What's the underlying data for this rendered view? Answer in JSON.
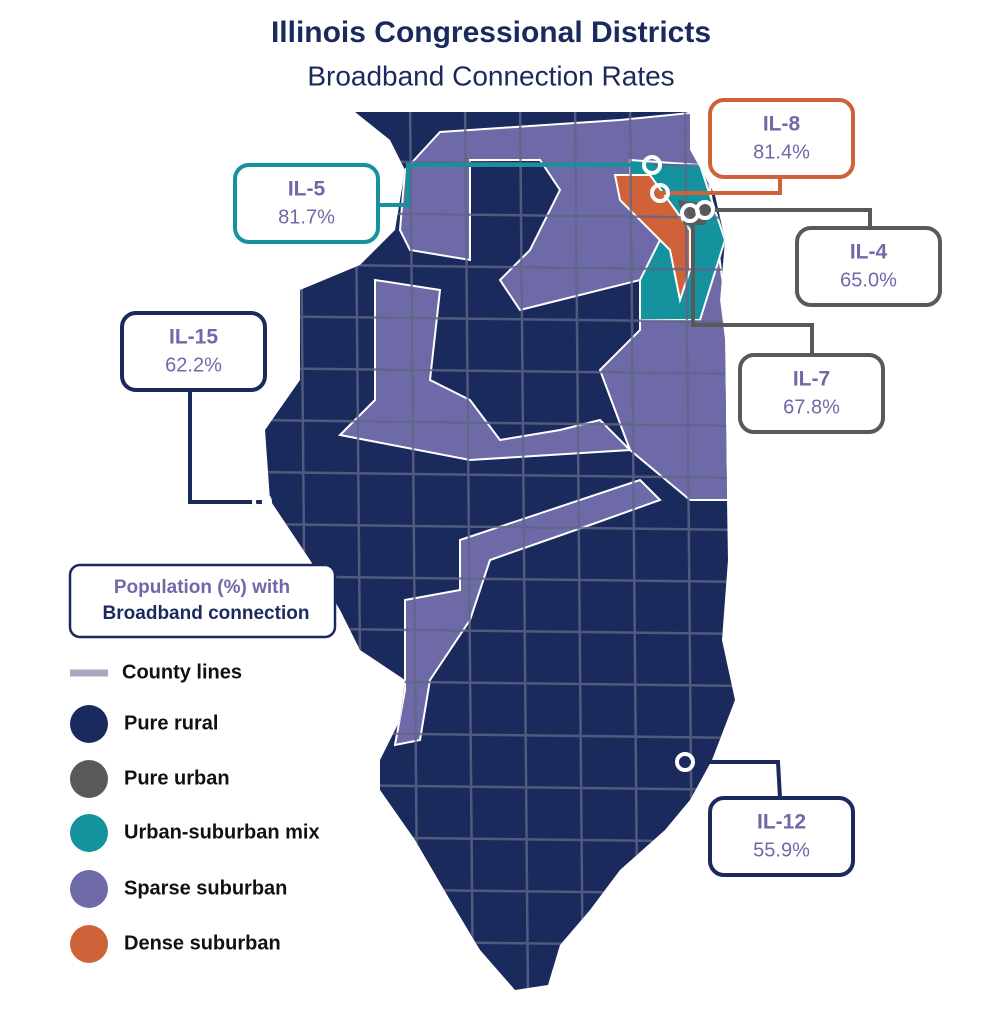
{
  "title": "Illinois Congressional Districts",
  "subtitle": "Broadband Connection Rates",
  "callouts": [
    {
      "district": "IL-8",
      "rate": "81.4%",
      "color": "#cf6238"
    },
    {
      "district": "IL-5",
      "rate": "81.7%",
      "color": "#14939f"
    },
    {
      "district": "IL-4",
      "rate": "65.0%",
      "color": "#58595b"
    },
    {
      "district": "IL-7",
      "rate": "67.8%",
      "color": "#58595b"
    },
    {
      "district": "IL-15",
      "rate": "62.2%",
      "color": "#1b2a5c"
    },
    {
      "district": "IL-12",
      "rate": "55.9%",
      "color": "#1b2a5c"
    }
  ],
  "legend": {
    "title_line1": "Population (%) with",
    "title_line2": "Broadband connection",
    "items": [
      {
        "label": "County lines",
        "color": "#a6a9bd"
      },
      {
        "label": "Pure rural",
        "color": "#1b2a5c"
      },
      {
        "label": "Pure urban",
        "color": "#58595b"
      },
      {
        "label": "Urban-suburban mix",
        "color": "#14939f"
      },
      {
        "label": "Sparse suburban",
        "color": "#6e6aa8"
      },
      {
        "label": "Dense suburban",
        "color": "#cf6238"
      }
    ]
  }
}
